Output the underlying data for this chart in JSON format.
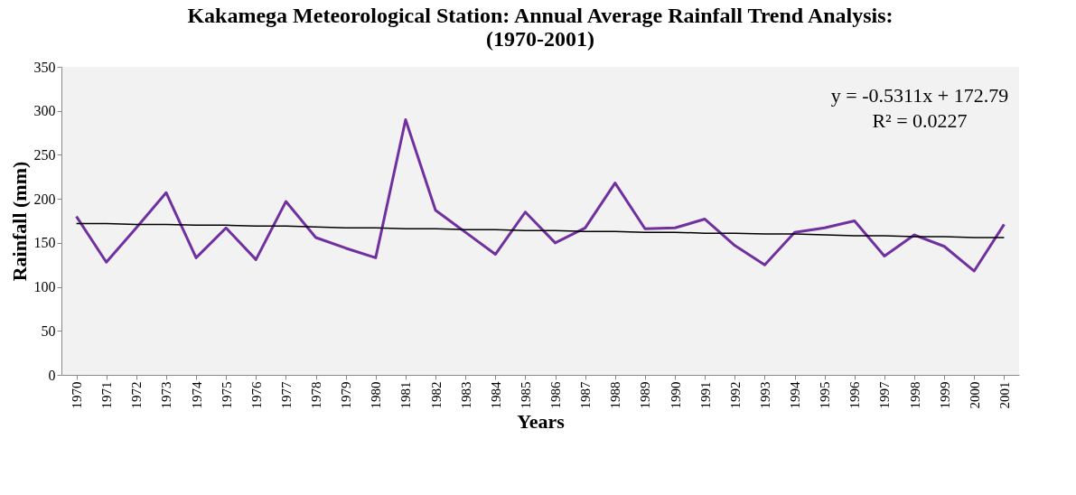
{
  "chart_data": {
    "type": "line",
    "title": [
      "Kakamega Meteorological Station: Annual Average Rainfall Trend Analysis:",
      "(1970-2001)"
    ],
    "xlabel": "Years",
    "ylabel": "Rainfall (mm)",
    "categories": [
      "1970",
      "1971",
      "1972",
      "1973",
      "1974",
      "1975",
      "1976",
      "1977",
      "1978",
      "1979",
      "1980",
      "1981",
      "1982",
      "1983",
      "1984",
      "1985",
      "1986",
      "1987",
      "1988",
      "1989",
      "1990",
      "1991",
      "1992",
      "1993",
      "1994",
      "1995",
      "1996",
      "1997",
      "1998",
      "1999",
      "2000",
      "2001"
    ],
    "series": [
      {
        "color": "#7030a0",
        "values": [
          180,
          128,
          167,
          207,
          133,
          167,
          131,
          197,
          156,
          144,
          133,
          290,
          187,
          162,
          137,
          185,
          150,
          167,
          218,
          166,
          167,
          177,
          147,
          125,
          162,
          167,
          175,
          135,
          159,
          146,
          118,
          171
        ]
      },
      {
        "type": "line",
        "color": "#000000",
        "values": [
          172,
          172,
          171,
          171,
          170,
          170,
          169,
          169,
          168,
          167,
          167,
          166,
          166,
          165,
          165,
          164,
          164,
          163,
          163,
          162,
          162,
          161,
          161,
          160,
          160,
          159,
          158,
          158,
          157,
          157,
          156,
          156
        ]
      }
    ],
    "ylim": [
      0,
      350
    ],
    "yticks": [
      0,
      50,
      100,
      150,
      200,
      250,
      300,
      350
    ],
    "grid": false,
    "annotations": [
      "y = -0.5311x + 172.79",
      "R² = 0.0227"
    ]
  }
}
